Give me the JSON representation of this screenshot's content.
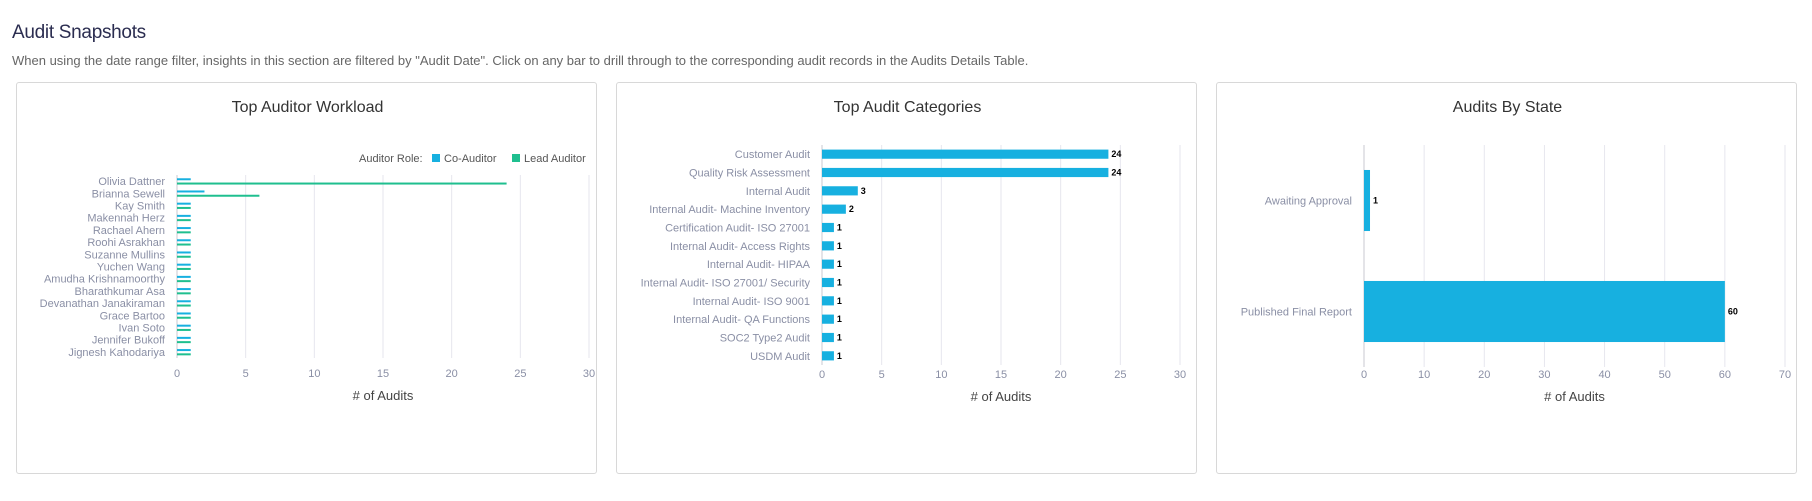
{
  "page": {
    "title": "Audit Snapshots",
    "description": "When using the date range filter, insights in this section are filtered by \"Audit Date\". Click on any bar to drill through to the corresponding audit records in the Audits Details Table."
  },
  "colors": {
    "co_auditor": "#17b0e0",
    "lead_auditor": "#1fbf8f",
    "grid": "#e6e6ee"
  },
  "chart_data": [
    {
      "type": "bar",
      "orientation": "horizontal",
      "title": "Top Auditor Workload",
      "xlabel": "# of Audits",
      "xlim": [
        0,
        30
      ],
      "xticks": [
        0,
        5,
        10,
        15,
        20,
        25,
        30
      ],
      "legend_title": "Auditor Role:",
      "legend_position": "top-right",
      "categories": [
        "Olivia Dattner",
        "Brianna Sewell",
        "Kay Smith",
        "Makennah Herz",
        "Rachael Ahern",
        "Roohi Asrakhan",
        "Suzanne Mullins",
        "Yuchen Wang",
        "Amudha Krishnamoorthy",
        "Bharathkumar Asa",
        "Devanathan Janakiraman",
        "Grace Bartoo",
        "Ivan Soto",
        "Jennifer Bukoff",
        "Jignesh Kahodariya"
      ],
      "series": [
        {
          "name": "Co-Auditor",
          "values": [
            1,
            2,
            1,
            1,
            1,
            1,
            1,
            1,
            1,
            1,
            1,
            1,
            1,
            1,
            1
          ]
        },
        {
          "name": "Lead Auditor",
          "values": [
            24,
            6,
            1,
            1,
            1,
            1,
            1,
            1,
            1,
            1,
            1,
            1,
            1,
            1,
            1
          ]
        }
      ]
    },
    {
      "type": "bar",
      "orientation": "horizontal",
      "title": "Top Audit Categories",
      "xlabel": "# of Audits",
      "xlim": [
        0,
        30
      ],
      "xticks": [
        0,
        5,
        10,
        15,
        20,
        25,
        30
      ],
      "categories": [
        "Customer Audit",
        "Quality Risk Assessment",
        "Internal Audit",
        "Internal Audit- Machine Inventory",
        "Certification Audit- ISO 27001",
        "Internal Audit- Access Rights",
        "Internal Audit- HIPAA",
        "Internal Audit- ISO 27001/ Security",
        "Internal Audit- ISO 9001",
        "Internal Audit- QA Functions",
        "SOC2 Type2 Audit",
        "USDM Audit"
      ],
      "values": [
        24,
        24,
        3,
        2,
        1,
        1,
        1,
        1,
        1,
        1,
        1,
        1
      ]
    },
    {
      "type": "bar",
      "orientation": "horizontal",
      "title": "Audits By State",
      "xlabel": "# of Audits",
      "xlim": [
        0,
        70
      ],
      "xticks": [
        0,
        10,
        20,
        30,
        40,
        50,
        60,
        70
      ],
      "categories": [
        "Awaiting Approval",
        "Published Final Report"
      ],
      "values": [
        1,
        60
      ]
    }
  ]
}
